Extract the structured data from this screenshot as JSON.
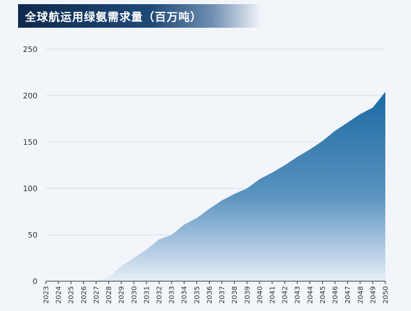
{
  "chart_data": {
    "type": "area",
    "title": "全球航运用绿氨需求量（百万吨）",
    "xlabel": "",
    "ylabel": "",
    "x": [
      "2023",
      "2024",
      "2025",
      "2026",
      "2027",
      "2028",
      "2029",
      "2030",
      "2031",
      "2032",
      "2033",
      "2034",
      "2035",
      "2036",
      "2037",
      "2038",
      "2039",
      "2040",
      "2041",
      "2042",
      "2043",
      "2044",
      "2045",
      "2046",
      "2047",
      "2048",
      "2049",
      "2050"
    ],
    "values": [
      0,
      0,
      0,
      0,
      0,
      4,
      16,
      25,
      34,
      45,
      50,
      61,
      68,
      78,
      87,
      94,
      100,
      110,
      117,
      125,
      134,
      142,
      151,
      162,
      171,
      180,
      187,
      204
    ],
    "ylim": [
      0,
      250
    ],
    "yticks": [
      0,
      50,
      100,
      150,
      200,
      250
    ],
    "grid": true,
    "colors": {
      "top": "#1a6aa3",
      "bottom": "#e6eef7",
      "grid": "#d8dde5",
      "axis": "#333333"
    }
  }
}
